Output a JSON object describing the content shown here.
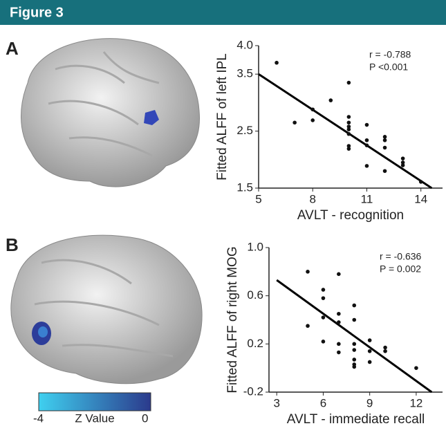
{
  "header": {
    "title": "Figure 3"
  },
  "panels": [
    "A",
    "B"
  ],
  "colorbar": {
    "label": "Z Value",
    "ticks": [
      -4,
      0
    ],
    "colors": [
      "#3fd0f0",
      "#2b3a8c"
    ]
  },
  "chart_data": [
    {
      "type": "scatter",
      "xlabel": "AVLT - recognition",
      "ylabel": "Fitted ALFF of left IPL",
      "xlim": [
        5,
        15.2
      ],
      "ylim": [
        1.5,
        4.0
      ],
      "xticks": [
        5,
        8,
        11,
        14
      ],
      "yticks": [
        {
          "value": 1.5,
          "label": "1.5"
        },
        {
          "value": 2.5,
          "label": "2.5"
        },
        {
          "value": 3.5,
          "label": "3.5"
        },
        {
          "value": 4.0,
          "label": "4.0"
        }
      ],
      "annotations": [
        "r = -0.788",
        "P <0.001"
      ],
      "color": "#111111",
      "x": [
        6,
        7,
        8,
        8,
        9,
        10,
        10,
        10,
        10,
        10,
        10,
        10,
        10,
        11,
        11,
        11,
        11,
        12,
        12,
        12,
        12,
        13,
        13,
        13,
        14
      ],
      "y": [
        3.7,
        2.65,
        2.88,
        2.69,
        3.04,
        3.35,
        2.75,
        2.65,
        2.58,
        2.53,
        2.45,
        2.24,
        2.19,
        2.61,
        2.34,
        2.25,
        1.89,
        2.4,
        2.34,
        2.21,
        1.8,
        2.02,
        1.95,
        1.9,
        1.61
      ],
      "fit_line": {
        "x": [
          5,
          14.6
        ],
        "y": [
          3.5,
          1.5
        ]
      }
    },
    {
      "type": "scatter",
      "xlabel": "AVLT - immediate recall",
      "ylabel": "Fitted ALFF of right MOG",
      "xlim": [
        2.5,
        13.7
      ],
      "ylim": [
        -0.2,
        1.0
      ],
      "xticks": [
        3,
        6,
        9,
        12
      ],
      "yticks": [
        -0.2,
        0.2,
        0.6,
        {
          "value": 1.0,
          "label": "1.0"
        }
      ],
      "annotations": [
        "r = -0.636",
        "P = 0.002"
      ],
      "color": "#111111",
      "x": [
        5,
        5,
        6,
        6,
        6,
        6,
        7,
        7,
        7,
        7,
        7,
        8,
        8,
        8,
        8,
        8,
        8,
        8,
        9,
        9,
        9,
        10,
        10,
        12
      ],
      "y": [
        0.8,
        0.35,
        0.65,
        0.58,
        0.42,
        0.22,
        0.78,
        0.45,
        0.38,
        0.2,
        0.13,
        0.52,
        0.4,
        0.2,
        0.15,
        0.07,
        0.03,
        0.01,
        0.23,
        0.14,
        0.05,
        0.17,
        0.14,
        0.0
      ],
      "fit_line": {
        "x": [
          3,
          13
        ],
        "y": [
          0.73,
          -0.2
        ]
      }
    }
  ]
}
